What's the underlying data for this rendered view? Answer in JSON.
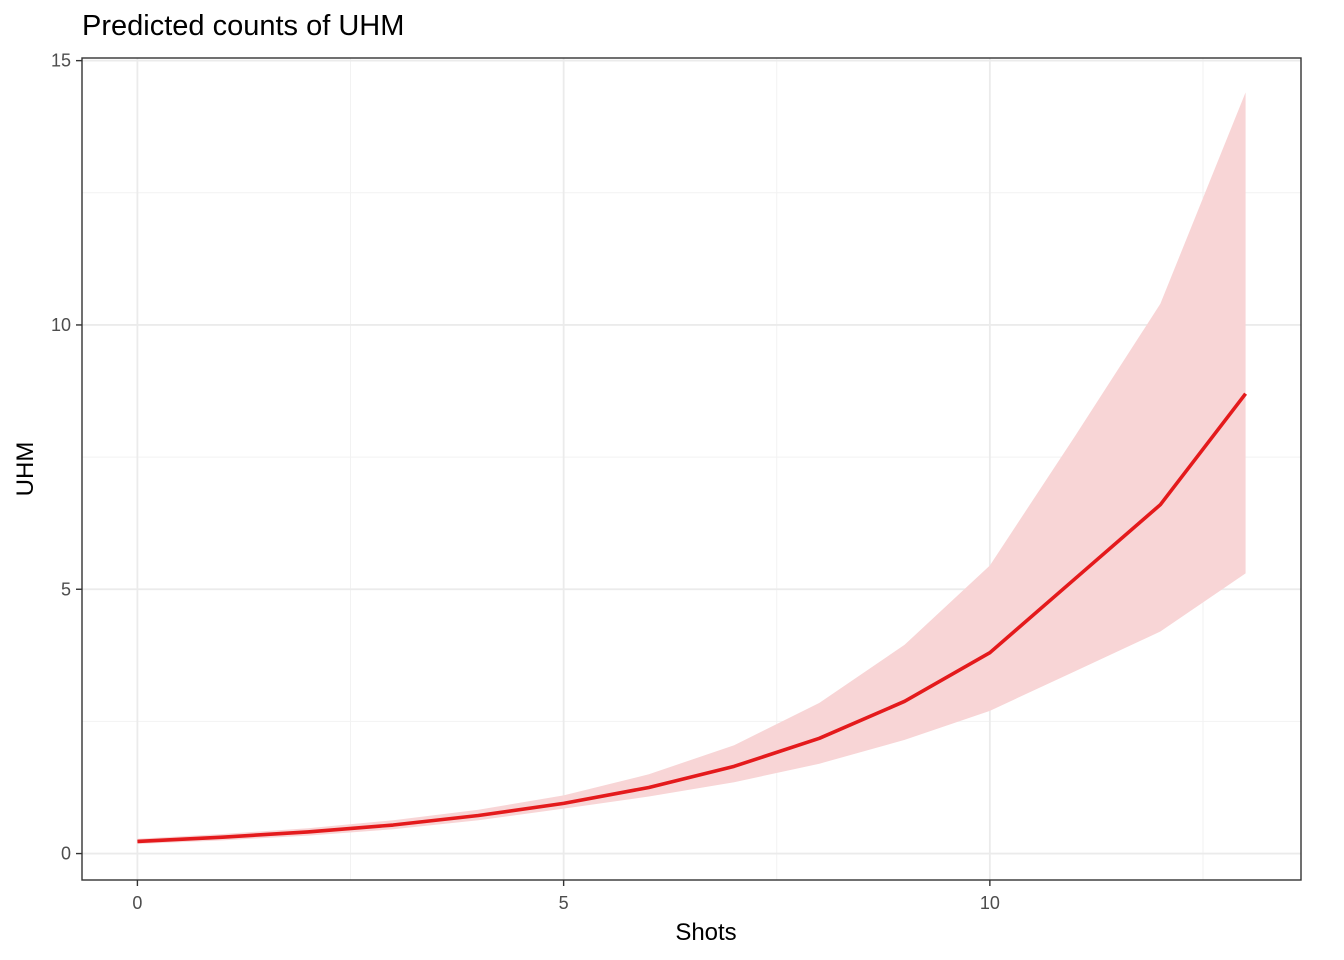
{
  "chart_data": {
    "type": "line",
    "title": "Predicted counts of UHM",
    "xlabel": "Shots",
    "ylabel": "UHM",
    "xlim": [
      -0.65,
      13.65
    ],
    "ylim": [
      -0.5,
      15.05
    ],
    "x_ticks": [
      0,
      5,
      10
    ],
    "y_ticks": [
      0,
      5,
      10,
      15
    ],
    "x_minor": [
      2.5,
      7.5,
      12.5
    ],
    "y_minor": [
      2.5,
      7.5,
      12.5
    ],
    "grid": true,
    "legend": "none",
    "series": [
      {
        "color": "#e41a1c",
        "band_color": "#f8d5d6",
        "x": [
          0,
          1,
          2,
          3,
          4,
          5,
          6,
          7,
          8,
          9,
          10,
          11,
          12,
          13
        ],
        "y": [
          0.23,
          0.31,
          0.41,
          0.54,
          0.72,
          0.95,
          1.25,
          1.65,
          2.18,
          2.88,
          3.8,
          5.2,
          6.6,
          8.7
        ],
        "lower": [
          0.18,
          0.25,
          0.34,
          0.46,
          0.63,
          0.85,
          1.08,
          1.35,
          1.7,
          2.15,
          2.7,
          3.45,
          4.2,
          5.3
        ],
        "upper": [
          0.28,
          0.37,
          0.48,
          0.63,
          0.83,
          1.1,
          1.5,
          2.05,
          2.85,
          3.95,
          5.45,
          7.9,
          10.4,
          14.4
        ]
      }
    ]
  }
}
